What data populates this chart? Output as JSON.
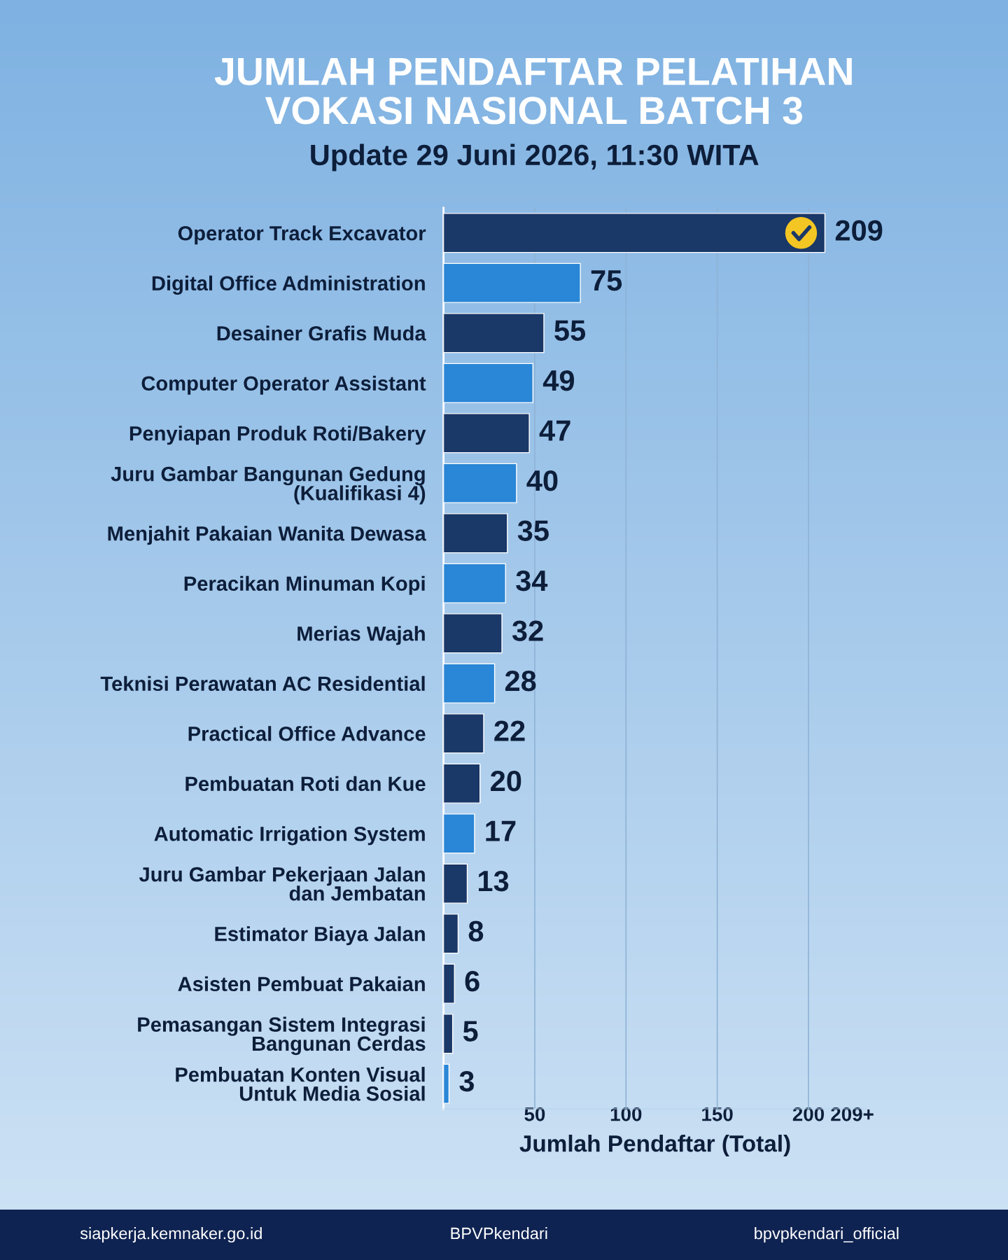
{
  "chart_data": {
    "type": "bar",
    "orientation": "horizontal",
    "title": "JUMLAH PENDAFTAR PELATIHAN\nVOKASI NASIONAL BATCH 3",
    "subtitle": "Update 29 Juni 2026, 11:30 WITA",
    "xlabel": "Jumlah Pendaftar (Total)",
    "categories": [
      "Operator Track Excavator",
      "Digital Office Administration",
      "Desainer Grafis Muda",
      "Computer Operator Assistant",
      "Penyiapan Produk Roti/Bakery",
      "Juru Gambar Bangunan Gedung\n(Kualifikasi 4)",
      "Menjahit Pakaian Wanita Dewasa",
      "Peracikan Minuman Kopi",
      "Merias Wajah",
      "Teknisi Perawatan AC Residential",
      "Practical Office Advance",
      "Pembuatan Roti dan Kue",
      "Automatic Irrigation System",
      "Juru Gambar Pekerjaan Jalan\ndan Jembatan",
      "Estimator Biaya Jalan",
      "Asisten Pembuat Pakaian",
      "Pemasangan Sistem Integrasi\nBangunan Cerdas",
      "Pembuatan Konten Visual\nUntuk Media Sosial"
    ],
    "values": [
      209,
      75,
      55,
      49,
      47,
      40,
      35,
      34,
      32,
      28,
      22,
      20,
      17,
      13,
      8,
      6,
      5,
      3
    ],
    "colors": [
      "#1a3868",
      "#2a86d6",
      "#1a3868",
      "#2a86d6",
      "#1a3868",
      "#2a86d6",
      "#1a3868",
      "#2a86d6",
      "#1a3868",
      "#2a86d6",
      "#1a3868",
      "#1a3868",
      "#2a86d6",
      "#1a3868",
      "#1a3868",
      "#1a3868",
      "#1a3868",
      "#2a86d6"
    ],
    "data_labels": true,
    "xlim": [
      0,
      232
    ],
    "xticks": [
      50,
      100,
      150,
      200,
      {
        "value": 224,
        "label": "209+"
      }
    ],
    "grid": "x",
    "annotations": [
      "siapkerja.kemnaker.go.id",
      "BPVPkendari",
      "bpvpkendari_official"
    ]
  }
}
